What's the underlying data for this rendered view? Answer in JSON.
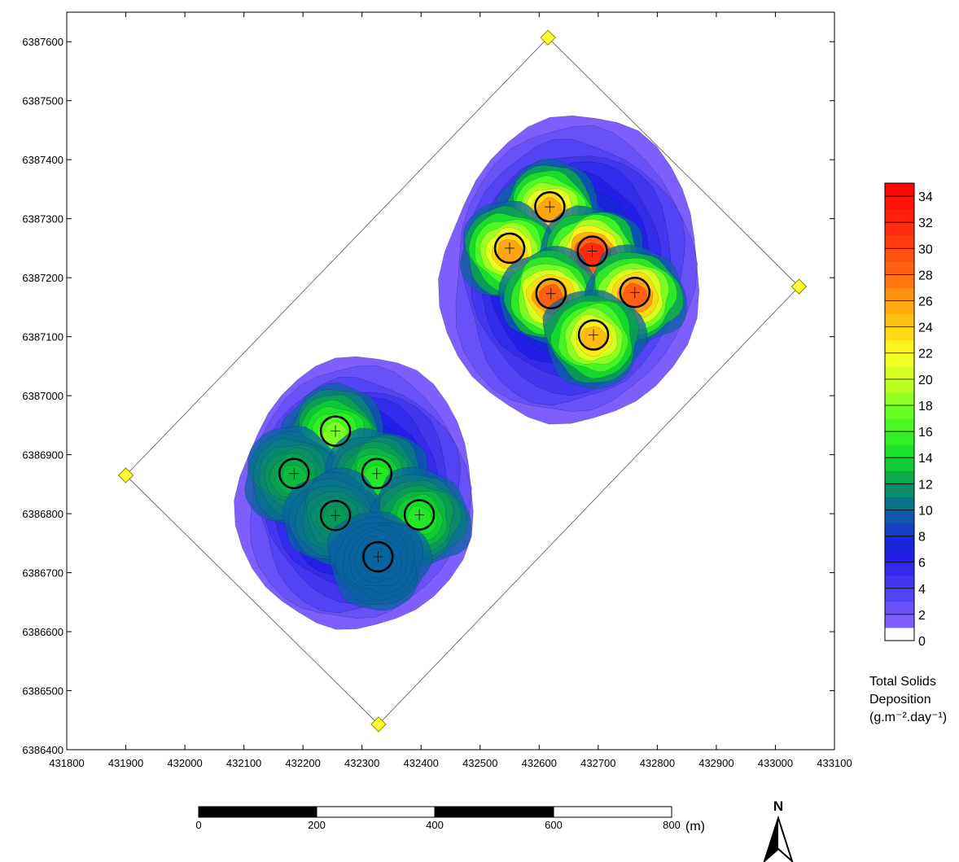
{
  "map": {
    "x_axis": {
      "range": [
        431800,
        433100
      ],
      "ticks": [
        "431800",
        "431900",
        "432000",
        "432100",
        "432200",
        "432300",
        "432400",
        "432500",
        "432600",
        "432700",
        "432800",
        "432900",
        "433000",
        "433100"
      ]
    },
    "y_axis": {
      "range": [
        6386400,
        6387650
      ],
      "ticks": [
        "6386400",
        "6386500",
        "6386600",
        "6386700",
        "6386800",
        "6386900",
        "6387000",
        "6387100",
        "6387200",
        "6387300",
        "6387400",
        "6387500",
        "6387600"
      ]
    },
    "lease_boundary_vertices": [
      {
        "x": 431900,
        "y": 6386865
      },
      {
        "x": 432615,
        "y": 6387607
      },
      {
        "x": 433040,
        "y": 6387185
      },
      {
        "x": 432328,
        "y": 6386443
      }
    ],
    "pens_north": [
      {
        "x": 432618,
        "y": 6387320
      },
      {
        "x": 432550,
        "y": 6387250
      },
      {
        "x": 432690,
        "y": 6387245
      },
      {
        "x": 432620,
        "y": 6387173
      },
      {
        "x": 432762,
        "y": 6387175
      },
      {
        "x": 432692,
        "y": 6387103
      }
    ],
    "pens_south": [
      {
        "x": 432255,
        "y": 6386940
      },
      {
        "x": 432185,
        "y": 6386868
      },
      {
        "x": 432325,
        "y": 6386868
      },
      {
        "x": 432255,
        "y": 6386797
      },
      {
        "x": 432397,
        "y": 6386798
      },
      {
        "x": 432327,
        "y": 6386727
      }
    ],
    "colors": {
      "boundary_marker": "#ffff33",
      "pen_outline": "#000000"
    }
  },
  "legend": {
    "title_lines": [
      "Total Solids",
      "Deposition",
      "(g.m⁻².day⁻¹)"
    ],
    "labels": [
      "34",
      "32",
      "30",
      "28",
      "26",
      "24",
      "22",
      "20",
      "18",
      "16",
      "14",
      "12",
      "10",
      "8",
      "6",
      "4",
      "2",
      "0"
    ],
    "color_stops": [
      {
        "value": 0,
        "color": "#ffffff"
      },
      {
        "value": 1,
        "color": "#8866ff"
      },
      {
        "value": 4,
        "color": "#4a3cf0"
      },
      {
        "value": 7,
        "color": "#1a1ae6"
      },
      {
        "value": 10,
        "color": "#0a64a0"
      },
      {
        "value": 12,
        "color": "#0a9a55"
      },
      {
        "value": 14,
        "color": "#10dc28"
      },
      {
        "value": 17,
        "color": "#55ff22"
      },
      {
        "value": 20,
        "color": "#ccff22"
      },
      {
        "value": 22,
        "color": "#ffff22"
      },
      {
        "value": 24,
        "color": "#ffcc11"
      },
      {
        "value": 26,
        "color": "#ffa010"
      },
      {
        "value": 28,
        "color": "#ff6a10"
      },
      {
        "value": 31,
        "color": "#ff3311"
      },
      {
        "value": 35,
        "color": "#ff0000"
      }
    ]
  },
  "scale_bar": {
    "labels": [
      "0",
      "200",
      "400",
      "600",
      "800"
    ],
    "unit": "(m)"
  },
  "north_arrow": {
    "label": "N"
  }
}
